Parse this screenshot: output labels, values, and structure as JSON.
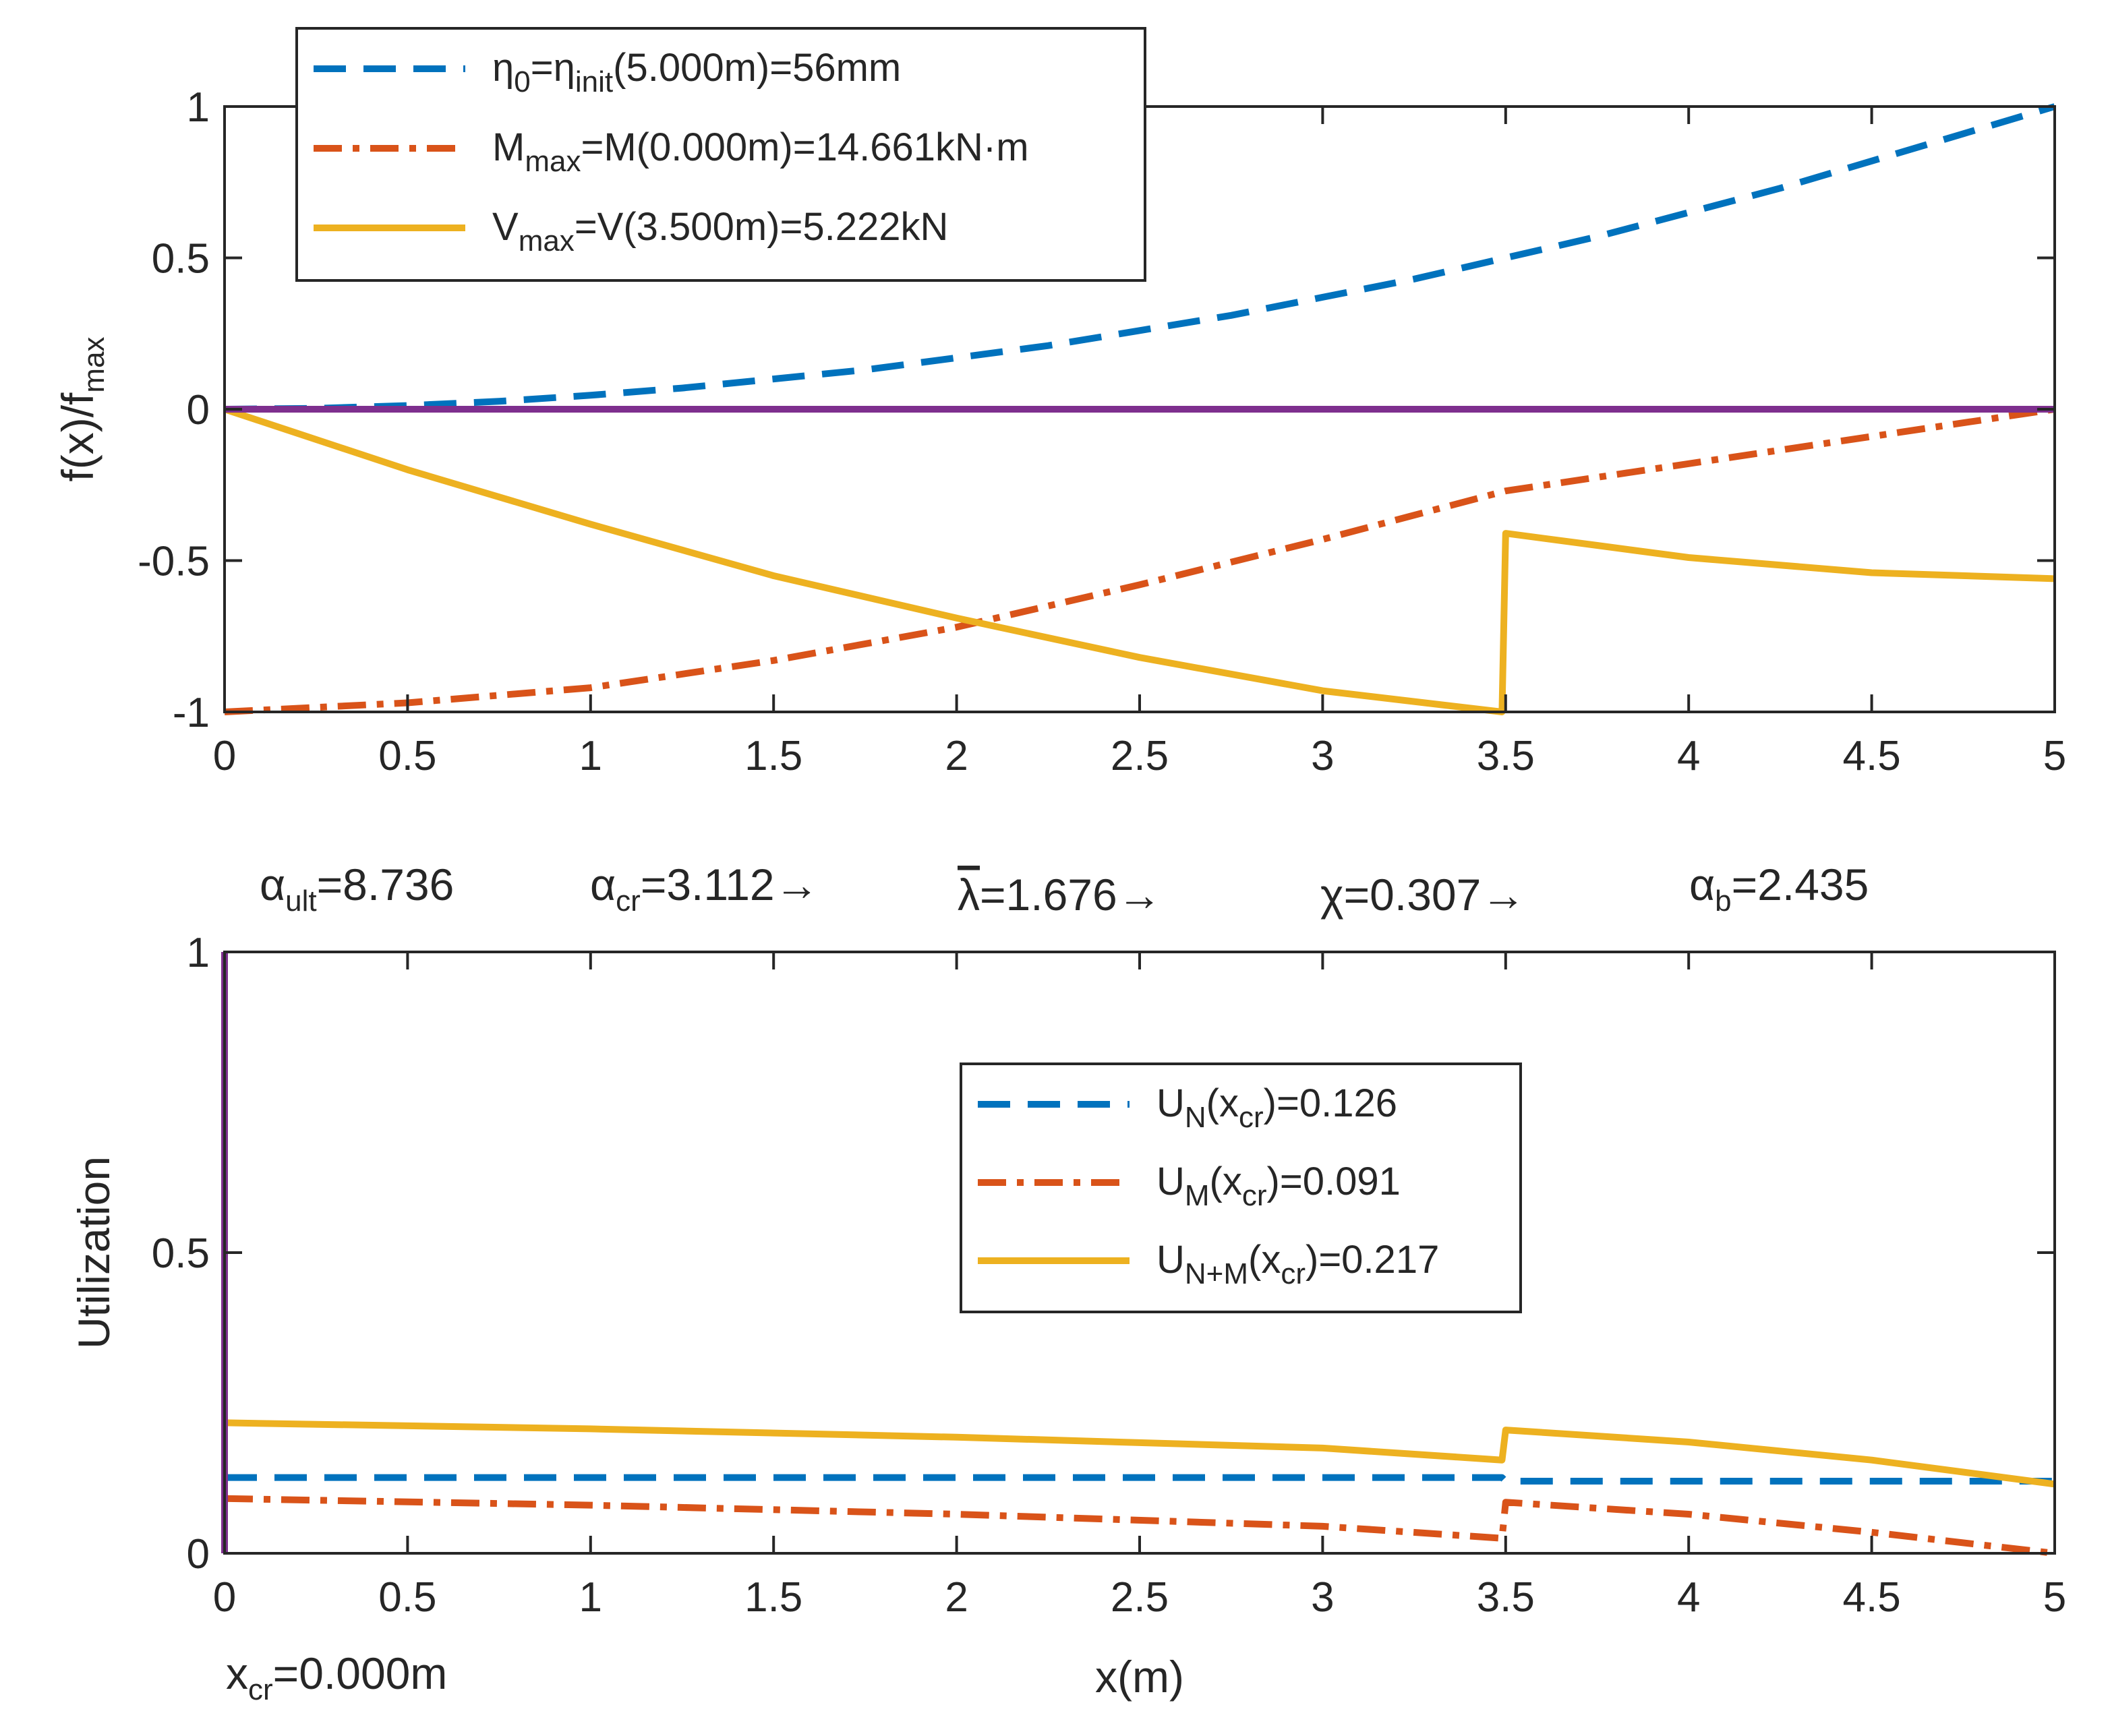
{
  "chart_data": [
    {
      "type": "line",
      "ylabel": "f(x)/f",
      "ylabel_sub": "max",
      "xlim": [
        0,
        5
      ],
      "ylim": [
        -1,
        1
      ],
      "xticks": [
        0,
        0.5,
        1,
        1.5,
        2,
        2.5,
        3,
        3.5,
        4,
        4.5,
        5
      ],
      "xtick_labels": [
        "0",
        "0.5",
        "1",
        "1.5",
        "2",
        "2.5",
        "3",
        "3.5",
        "4",
        "4.5",
        "5"
      ],
      "yticks": [
        -1,
        -0.5,
        0,
        0.5,
        1
      ],
      "ytick_labels": [
        "-1",
        "-0.5",
        "0",
        "0.5",
        "1"
      ],
      "legend_location": "top-left",
      "series": [
        {
          "name": "eta0",
          "color": "#0072BD",
          "dash": "dashed",
          "legend": [
            {
              "t": "η",
              "s": ""
            },
            {
              "t": "0",
              "s": "sub"
            },
            {
              "t": "=η",
              "s": ""
            },
            {
              "t": "init",
              "s": "sub"
            },
            {
              "t": "(5.000m)=56mm",
              "s": ""
            }
          ],
          "x": [
            0,
            0.25,
            0.5,
            0.75,
            1,
            1.25,
            1.5,
            1.75,
            2,
            2.25,
            2.5,
            2.75,
            3,
            3.25,
            3.5,
            3.75,
            4,
            4.25,
            4.5,
            4.75,
            5
          ],
          "y": [
            0,
            0.003,
            0.012,
            0.026,
            0.046,
            0.07,
            0.1,
            0.13,
            0.17,
            0.21,
            0.26,
            0.31,
            0.37,
            0.43,
            0.5,
            0.57,
            0.65,
            0.73,
            0.82,
            0.91,
            1.0
          ]
        },
        {
          "name": "M",
          "color": "#D95319",
          "dash": "dashdot",
          "legend": [
            {
              "t": "M",
              "s": ""
            },
            {
              "t": "max",
              "s": "sub"
            },
            {
              "t": "=M(0.000m)=14.661kN·m",
              "s": ""
            }
          ],
          "x": [
            0,
            0.5,
            1,
            1.5,
            2,
            2.5,
            3,
            3.5,
            4,
            4.5,
            5
          ],
          "y": [
            -1.0,
            -0.97,
            -0.92,
            -0.83,
            -0.72,
            -0.58,
            -0.43,
            -0.27,
            -0.18,
            -0.09,
            0.0
          ]
        },
        {
          "name": "V",
          "color": "#EDB120",
          "dash": "solid",
          "legend": [
            {
              "t": "V",
              "s": ""
            },
            {
              "t": "max",
              "s": "sub"
            },
            {
              "t": "=V(3.500m)=5.222kN",
              "s": ""
            }
          ],
          "x": [
            0,
            0.5,
            1,
            1.5,
            2,
            2.5,
            3,
            3.49,
            3.5,
            3.75,
            4,
            4.5,
            5
          ],
          "y": [
            0,
            -0.2,
            -0.38,
            -0.55,
            -0.69,
            -0.82,
            -0.93,
            -1.0,
            -0.41,
            -0.45,
            -0.49,
            -0.54,
            -0.56
          ]
        },
        {
          "name": "zero",
          "color": "#7E2F8E",
          "dash": "solid",
          "legend": null,
          "x": [
            0,
            5
          ],
          "y": [
            0,
            0
          ]
        }
      ]
    },
    {
      "type": "line",
      "xlabel": "x(m)",
      "ylabel": "Utilization",
      "xlim": [
        0,
        5
      ],
      "ylim": [
        0,
        1
      ],
      "xticks": [
        0,
        0.5,
        1,
        1.5,
        2,
        2.5,
        3,
        3.5,
        4,
        4.5,
        5
      ],
      "xtick_labels": [
        "0",
        "0.5",
        "1",
        "1.5",
        "2",
        "2.5",
        "3",
        "3.5",
        "4",
        "4.5",
        "5"
      ],
      "yticks": [
        0,
        0.5,
        1
      ],
      "ytick_labels": [
        "0",
        "0.5",
        "1"
      ],
      "legend_location": "center-right",
      "series": [
        {
          "name": "UN",
          "color": "#0072BD",
          "dash": "dashed",
          "legend": [
            {
              "t": "U",
              "s": ""
            },
            {
              "t": "N",
              "s": "sub"
            },
            {
              "t": "(x",
              "s": ""
            },
            {
              "t": "cr",
              "s": "sub"
            },
            {
              "t": ")=0.126",
              "s": ""
            }
          ],
          "x": [
            0,
            3.49,
            3.5,
            5
          ],
          "y": [
            0.126,
            0.126,
            0.12,
            0.12
          ]
        },
        {
          "name": "UM",
          "color": "#D95319",
          "dash": "dashdot",
          "legend": [
            {
              "t": "U",
              "s": ""
            },
            {
              "t": "M",
              "s": "sub"
            },
            {
              "t": "(x",
              "s": ""
            },
            {
              "t": "cr",
              "s": "sub"
            },
            {
              "t": ")=0.091",
              "s": ""
            }
          ],
          "x": [
            0,
            1,
            2,
            3,
            3.49,
            3.5,
            4,
            4.5,
            5
          ],
          "y": [
            0.091,
            0.08,
            0.065,
            0.045,
            0.025,
            0.085,
            0.065,
            0.035,
            0.0
          ]
        },
        {
          "name": "UNM",
          "color": "#EDB120",
          "dash": "solid",
          "legend": [
            {
              "t": "U",
              "s": ""
            },
            {
              "t": "N+M",
              "s": "sub"
            },
            {
              "t": "(x",
              "s": ""
            },
            {
              "t": "cr",
              "s": "sub"
            },
            {
              "t": ")=0.217",
              "s": ""
            }
          ],
          "x": [
            0,
            1,
            2,
            3,
            3.49,
            3.5,
            4,
            4.5,
            5
          ],
          "y": [
            0.217,
            0.207,
            0.193,
            0.175,
            0.155,
            0.205,
            0.185,
            0.155,
            0.115
          ]
        },
        {
          "name": "xcr-marker",
          "color": "#7E2F8E",
          "dash": "solid",
          "legend": null,
          "x": [
            0,
            0
          ],
          "y": [
            0,
            1
          ]
        }
      ]
    }
  ],
  "annotations": {
    "alpha_ult": [
      {
        "t": "α",
        "s": ""
      },
      {
        "t": "ult",
        "s": "sub"
      },
      {
        "t": "=8.736",
        "s": ""
      }
    ],
    "alpha_cr": [
      {
        "t": "α",
        "s": ""
      },
      {
        "t": "cr",
        "s": "sub"
      },
      {
        "t": "=3.112→",
        "s": ""
      }
    ],
    "lambda_bar": [
      {
        "t": "λ",
        "s": "bar"
      },
      {
        "t": "=1.676→",
        "s": ""
      }
    ],
    "chi": [
      {
        "t": "χ=0.307→",
        "s": ""
      }
    ],
    "alpha_b": [
      {
        "t": "α",
        "s": ""
      },
      {
        "t": "b",
        "s": "sub"
      },
      {
        "t": "=2.435",
        "s": ""
      }
    ],
    "x_cr": [
      {
        "t": "x",
        "s": ""
      },
      {
        "t": "cr",
        "s": "sub"
      },
      {
        "t": "=0.000m",
        "s": ""
      }
    ]
  }
}
